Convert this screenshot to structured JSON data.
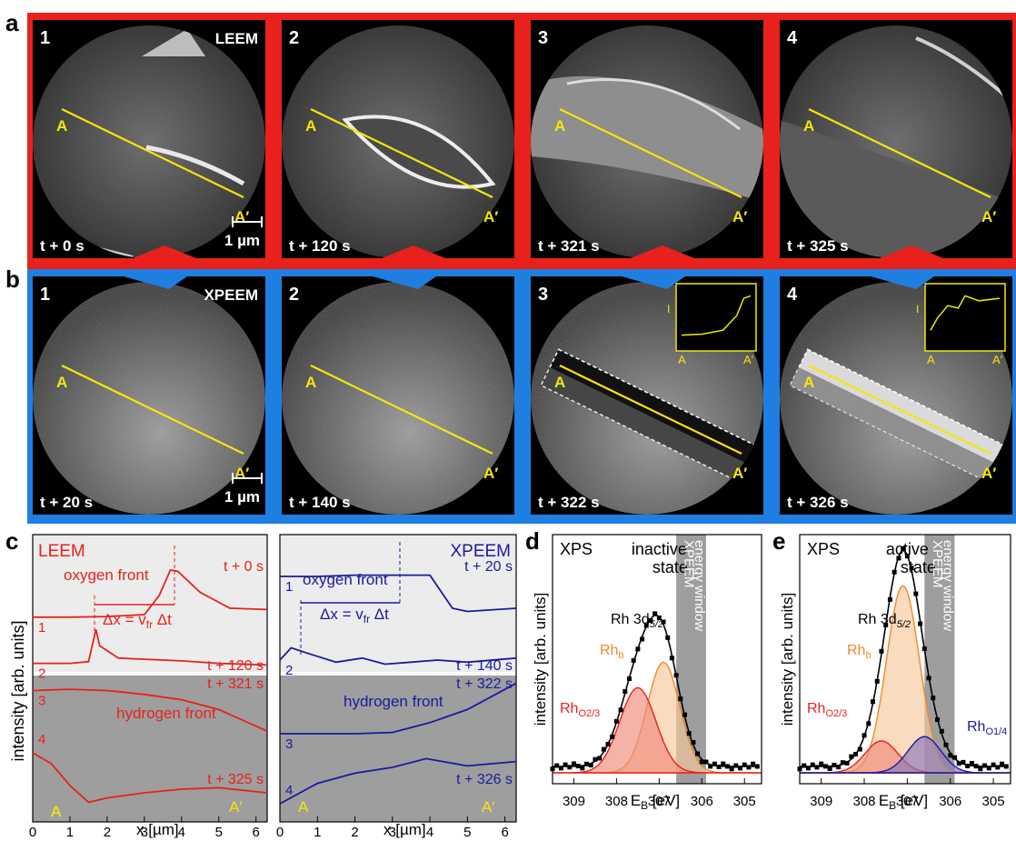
{
  "colors": {
    "leem_frame": "#e8211c",
    "xpeem_frame": "#1f7fe0",
    "profile_line": "#f5e60a",
    "leem_trace": "#e8211c",
    "xpeem_trace": "#1a1a9e",
    "rh_bulk": "#f08a2a",
    "rh_o23": "#e8211c",
    "rh_o14": "#1a1a9e",
    "window_gray": "#9e9e9e"
  },
  "panel_a": {
    "letter": "a",
    "mode": "LEEM",
    "marker_start": "A",
    "marker_end": "A′",
    "scalebar": "1 µm",
    "frames": [
      {
        "num": "1",
        "time": "t + 0 s"
      },
      {
        "num": "2",
        "time": "t + 120 s"
      },
      {
        "num": "3",
        "time": "t + 321 s"
      },
      {
        "num": "4",
        "time": "t + 325 s"
      }
    ]
  },
  "panel_b": {
    "letter": "b",
    "mode": "XPEEM",
    "marker_start": "A",
    "marker_end": "A′",
    "scalebar": "1 µm",
    "inset_y": "I",
    "inset_x0": "A",
    "inset_x1": "A′",
    "frames": [
      {
        "num": "1",
        "time": "t + 20 s"
      },
      {
        "num": "2",
        "time": "t + 140 s"
      },
      {
        "num": "3",
        "time": "t + 322 s"
      },
      {
        "num": "4",
        "time": "t + 326 s"
      }
    ]
  },
  "panel_c": {
    "letter": "c",
    "ylabel": "intensity [arb. units]",
    "xlabel": "x [µm]",
    "xticks": [
      "0",
      "1",
      "2",
      "3",
      "4",
      "5",
      "6"
    ],
    "left": {
      "mode": "LEEM",
      "oxygen_label": "oxygen front",
      "hydrogen_label": "hydrogen front",
      "dx_label": "Δx = v",
      "dx_sub": "fr",
      "dx_tail": " Δt",
      "traces": [
        {
          "num": "1",
          "time": "t + 0 s"
        },
        {
          "num": "2",
          "time": "t + 120 s"
        },
        {
          "num": "3",
          "time": "t + 321 s"
        },
        {
          "num": "4",
          "time": "t + 325 s"
        }
      ]
    },
    "right": {
      "mode": "XPEEM",
      "oxygen_label": "oxygen front",
      "hydrogen_label": "hydrogen front",
      "dx_label": "Δx = v",
      "dx_sub": "fr",
      "dx_tail": " Δt",
      "traces": [
        {
          "num": "1",
          "time": "t + 20 s"
        },
        {
          "num": "2",
          "time": "t + 140 s"
        },
        {
          "num": "3",
          "time": "t + 322 s"
        },
        {
          "num": "4",
          "time": "t + 326 s"
        }
      ]
    },
    "end_a": "A",
    "end_b": "A′"
  },
  "panel_d": {
    "letter": "d",
    "xps": "XPS",
    "state_line1": "inactive",
    "state_line2": "state",
    "window_line1": "XPEEM",
    "window_line2": "energy window",
    "peak_main": "Rh 3d",
    "peak_main_sub": "5/2",
    "peak_bulk": "Rh",
    "peak_bulk_sub": "b",
    "peak_o": "Rh",
    "peak_o_sub": "O2/3",
    "ylabel": "intensity [arb. units]",
    "xlabel": "E",
    "xlabel_sub": "B",
    "xlabel_unit": " [eV]",
    "xticks": [
      "309",
      "308",
      "307",
      "306",
      "305"
    ]
  },
  "panel_e": {
    "letter": "e",
    "xps": "XPS",
    "state_line1": "active",
    "state_line2": "state",
    "window_line1": "XPEEM",
    "window_line2": "energy window",
    "peak_main": "Rh 3d",
    "peak_main_sub": "5/2",
    "peak_bulk": "Rh",
    "peak_bulk_sub": "b",
    "peak_o": "Rh",
    "peak_o_sub": "O2/3",
    "peak_o14": "Rh",
    "peak_o14_sub": "O1/4",
    "ylabel": "intensity [arb. units]",
    "xlabel": "E",
    "xlabel_sub": "B",
    "xlabel_unit": " [eV]",
    "xticks": [
      "309",
      "308",
      "307",
      "306",
      "305"
    ]
  },
  "chart_data": [
    {
      "type": "line",
      "panel": "c-left",
      "xlabel": "x [µm]",
      "ylabel": "intensity [arb. units]",
      "xlim": [
        0,
        6.3
      ],
      "series": [
        {
          "name": "t + 0 s",
          "x": [
            0,
            1,
            2,
            3,
            3.4,
            3.7,
            3.9,
            4.5,
            5.3,
            6.3
          ],
          "values": [
            0.16,
            0.16,
            0.17,
            0.2,
            0.5,
            0.9,
            0.88,
            0.55,
            0.3,
            0.28
          ]
        },
        {
          "name": "t + 120 s",
          "x": [
            0,
            1,
            1.5,
            1.7,
            1.8,
            2.3,
            3,
            4,
            5,
            6.3
          ],
          "values": [
            0.12,
            0.12,
            0.16,
            0.95,
            0.55,
            0.25,
            0.22,
            0.18,
            0.12,
            0.08
          ]
        },
        {
          "name": "t + 321 s",
          "x": [
            0,
            1,
            2,
            3,
            4,
            5,
            6.3
          ],
          "values": [
            0.84,
            0.86,
            0.84,
            0.78,
            0.7,
            0.55,
            0.22
          ]
        },
        {
          "name": "t + 325 s",
          "x": [
            0,
            0.5,
            1,
            1.5,
            2,
            3,
            4,
            5,
            6.3
          ],
          "values": [
            0.9,
            0.75,
            0.45,
            0.22,
            0.28,
            0.35,
            0.4,
            0.42,
            0.35
          ]
        }
      ]
    },
    {
      "type": "line",
      "panel": "c-right",
      "xlabel": "x [µm]",
      "xlim": [
        0,
        6.3
      ],
      "series": [
        {
          "name": "t + 20 s",
          "x": [
            0,
            1,
            2,
            3,
            4,
            4.6,
            5,
            6.3
          ],
          "values": [
            0.8,
            0.8,
            0.82,
            0.82,
            0.82,
            0.3,
            0.25,
            0.3
          ]
        },
        {
          "name": "t + 140 s",
          "x": [
            0,
            0.3,
            0.8,
            1.5,
            2.2,
            2.8,
            3.5,
            4.2,
            5,
            6.3
          ],
          "values": [
            0.2,
            0.5,
            0.35,
            0.15,
            0.25,
            0.1,
            0.15,
            0.2,
            0.15,
            0.25
          ]
        },
        {
          "name": "t + 322 s",
          "x": [
            0,
            1,
            2,
            3,
            4,
            5,
            6.3
          ],
          "values": [
            0.18,
            0.18,
            0.18,
            0.2,
            0.35,
            0.55,
            0.95
          ]
        },
        {
          "name": "t + 326 s",
          "x": [
            0,
            1,
            2,
            3,
            3.9,
            5,
            6.3
          ],
          "values": [
            0.2,
            0.48,
            0.62,
            0.7,
            0.82,
            0.72,
            0.78
          ]
        }
      ]
    },
    {
      "type": "line",
      "panel": "d",
      "xlabel": "E_B [eV]",
      "ylabel": "intensity [arb. units]",
      "xlim": [
        309.5,
        304.6
      ],
      "series": [
        {
          "name": "Rh_b",
          "center": 306.9,
          "amplitude": 0.52,
          "fwhm": 0.9
        },
        {
          "name": "Rh_O2/3",
          "center": 307.5,
          "amplitude": 0.4,
          "fwhm": 1.0
        }
      ]
    },
    {
      "type": "line",
      "panel": "e",
      "xlabel": "E_B [eV]",
      "ylabel": "intensity [arb. units]",
      "xlim": [
        309.5,
        304.6
      ],
      "series": [
        {
          "name": "Rh_b",
          "center": 307.1,
          "amplitude": 0.88,
          "fwhm": 0.9
        },
        {
          "name": "Rh_O2/3",
          "center": 307.6,
          "amplitude": 0.15,
          "fwhm": 0.9
        },
        {
          "name": "Rh_O1/4",
          "center": 306.6,
          "amplitude": 0.17,
          "fwhm": 0.9
        }
      ]
    }
  ]
}
